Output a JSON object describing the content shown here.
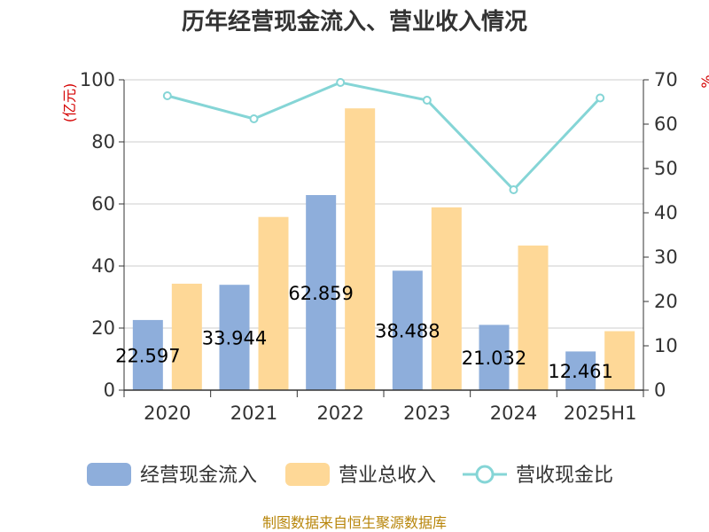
{
  "title": "历年经营现金流入、营业收入情况",
  "source": "制图数据来自恒生聚源数据库",
  "chart_data": {
    "type": "bar",
    "title": "历年经营现金流入、营业收入情况",
    "categories": [
      "2020",
      "2021",
      "2022",
      "2023",
      "2024",
      "2025H1"
    ],
    "y_left": {
      "unit_label": "(亿元)",
      "ylim": [
        0,
        100
      ],
      "ticks": [
        "0",
        "20",
        "40",
        "60",
        "80",
        "100"
      ]
    },
    "y_right": {
      "unit_label": "%",
      "ylim": [
        0,
        70
      ],
      "ticks": [
        "0",
        "10",
        "20",
        "30",
        "40",
        "50",
        "60",
        "70"
      ]
    },
    "grid": true,
    "legend_position": "bottom",
    "series": [
      {
        "name": "经营现金流入",
        "type": "bar",
        "axis": "left",
        "color": "#8eaedb",
        "values": [
          22.597,
          33.944,
          62.859,
          38.488,
          21.032,
          12.461
        ],
        "labels": [
          "22.597",
          "33.944",
          "62.859",
          "38.488",
          "21.032",
          "12.461"
        ]
      },
      {
        "name": "营业总收入",
        "type": "bar",
        "axis": "left",
        "color": "#fed897",
        "values": [
          34.3,
          55.8,
          90.8,
          58.9,
          46.6,
          19.0
        ]
      },
      {
        "name": "营收现金比",
        "type": "line",
        "axis": "right",
        "color": "#85d5d6",
        "values": [
          66.4,
          61.2,
          69.4,
          65.4,
          45.2,
          65.9
        ]
      }
    ]
  }
}
